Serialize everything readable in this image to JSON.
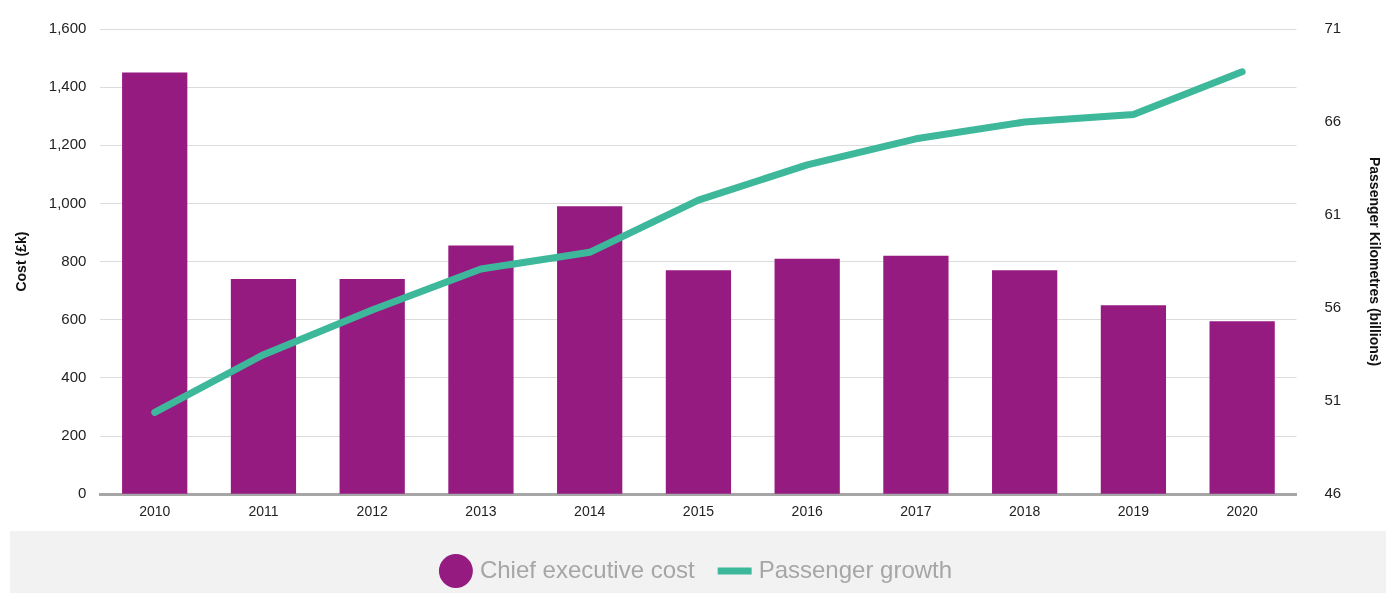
{
  "chart_data": {
    "type": "bar",
    "ylabel": "Cost (£k)",
    "y2label": "Passenger Kilometres (billions)",
    "categories": [
      "2010",
      "2011",
      "2012",
      "2013",
      "2014",
      "2015",
      "2016",
      "2017",
      "2018",
      "2019",
      "2020"
    ],
    "series": [
      {
        "name": "Chief executive cost",
        "color": "#951b81",
        "values": [
          1450,
          740,
          740,
          855,
          990,
          770,
          810,
          820,
          770,
          650,
          595
        ]
      },
      {
        "name": "Passenger growth",
        "type": "line",
        "axis": "y2",
        "color": "#3db89a",
        "values": [
          50.4,
          53.5,
          55.9,
          58.1,
          59.0,
          61.8,
          63.7,
          65.1,
          66.0,
          66.4,
          68.7
        ]
      }
    ],
    "ylim": [
      0,
      1600
    ],
    "yticks": [
      {
        "value": 0,
        "label": "0"
      },
      {
        "value": 200,
        "label": "200"
      },
      {
        "value": 400,
        "label": "400"
      },
      {
        "value": 600,
        "label": "600"
      },
      {
        "value": 800,
        "label": "800"
      },
      {
        "value": 1000,
        "label": "1,000"
      },
      {
        "value": 1200,
        "label": "1,200"
      },
      {
        "value": 1400,
        "label": "1,400"
      },
      {
        "value": 1600,
        "label": "1,600"
      }
    ],
    "y2lim": [
      46,
      71
    ],
    "y2ticks": [
      46,
      51,
      56,
      61,
      66,
      71
    ],
    "grid": "y",
    "legend": "bottom",
    "marker": "none"
  }
}
